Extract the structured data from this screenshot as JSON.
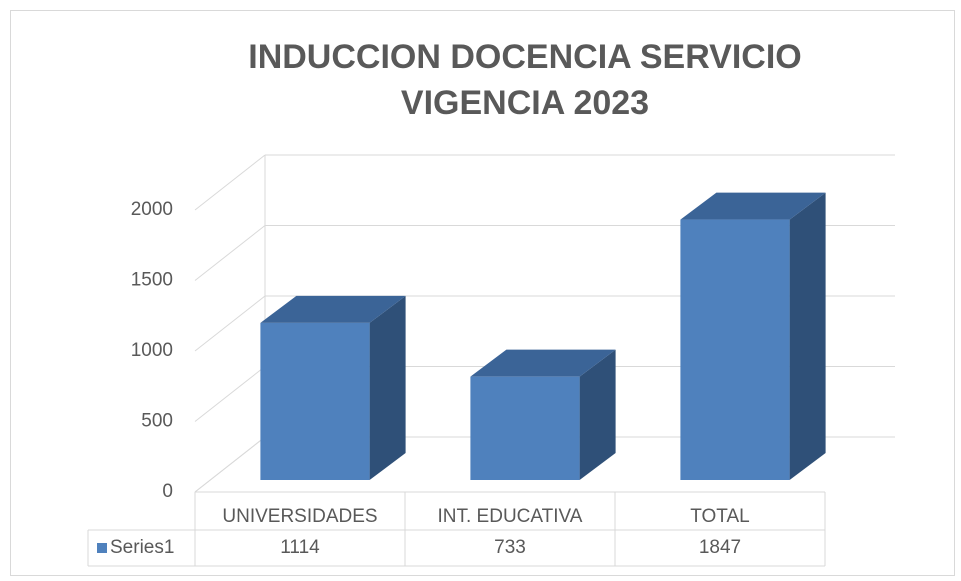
{
  "chart_data": {
    "type": "bar3d",
    "title": "INDUCCION DOCENCIA SERVICIO VIGENCIA 2023",
    "categories": [
      "UNIVERSIDADES",
      "INT. EDUCATIVA",
      "TOTAL"
    ],
    "series": [
      {
        "name": "Series1",
        "color": "#4f81bd",
        "values": [
          1114,
          733,
          1847
        ]
      }
    ],
    "ylim": [
      0,
      2000
    ],
    "yticks": [
      0,
      500,
      1000,
      1500,
      2000
    ],
    "grid": true,
    "data_table": true
  }
}
